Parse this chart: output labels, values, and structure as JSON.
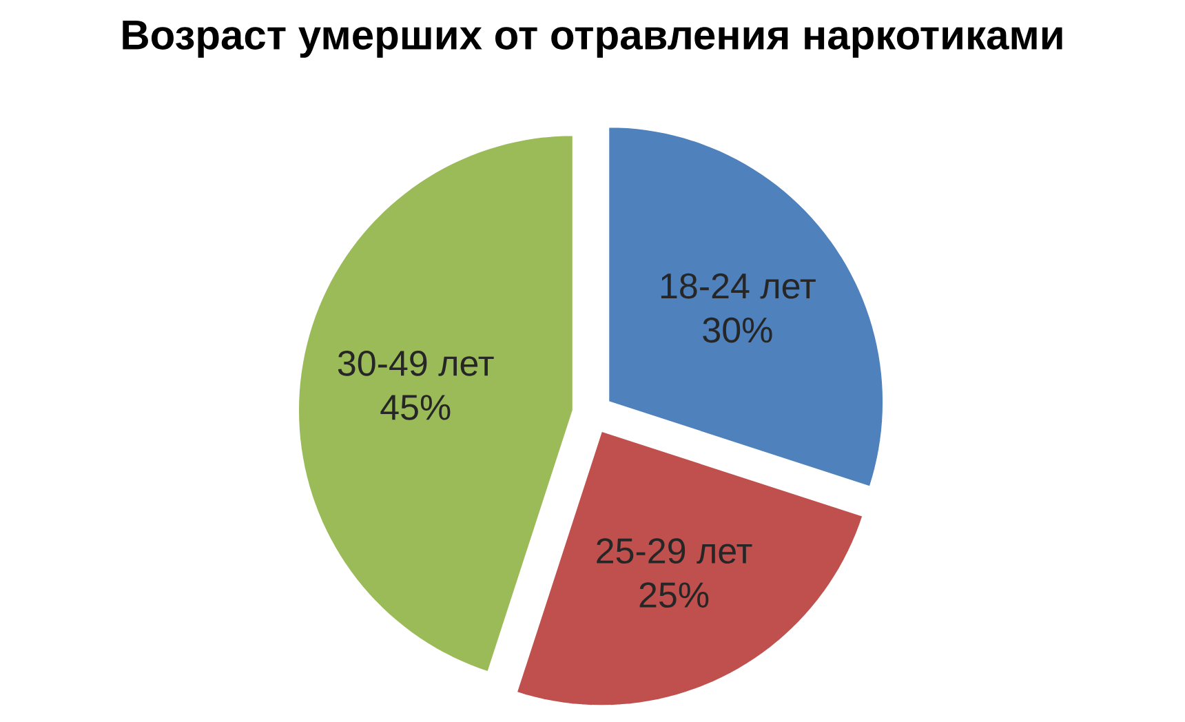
{
  "chart_data": {
    "type": "pie",
    "title": "Возраст умерших от отравления наркотиками",
    "categories": [
      "18-24 лет",
      "25-29 лет",
      "30-49 лет"
    ],
    "values": [
      30,
      25,
      45
    ],
    "value_labels": [
      "30%",
      "25%",
      "45%"
    ],
    "colors": [
      "#4f81bd",
      "#c0504d",
      "#9bbb59"
    ]
  }
}
